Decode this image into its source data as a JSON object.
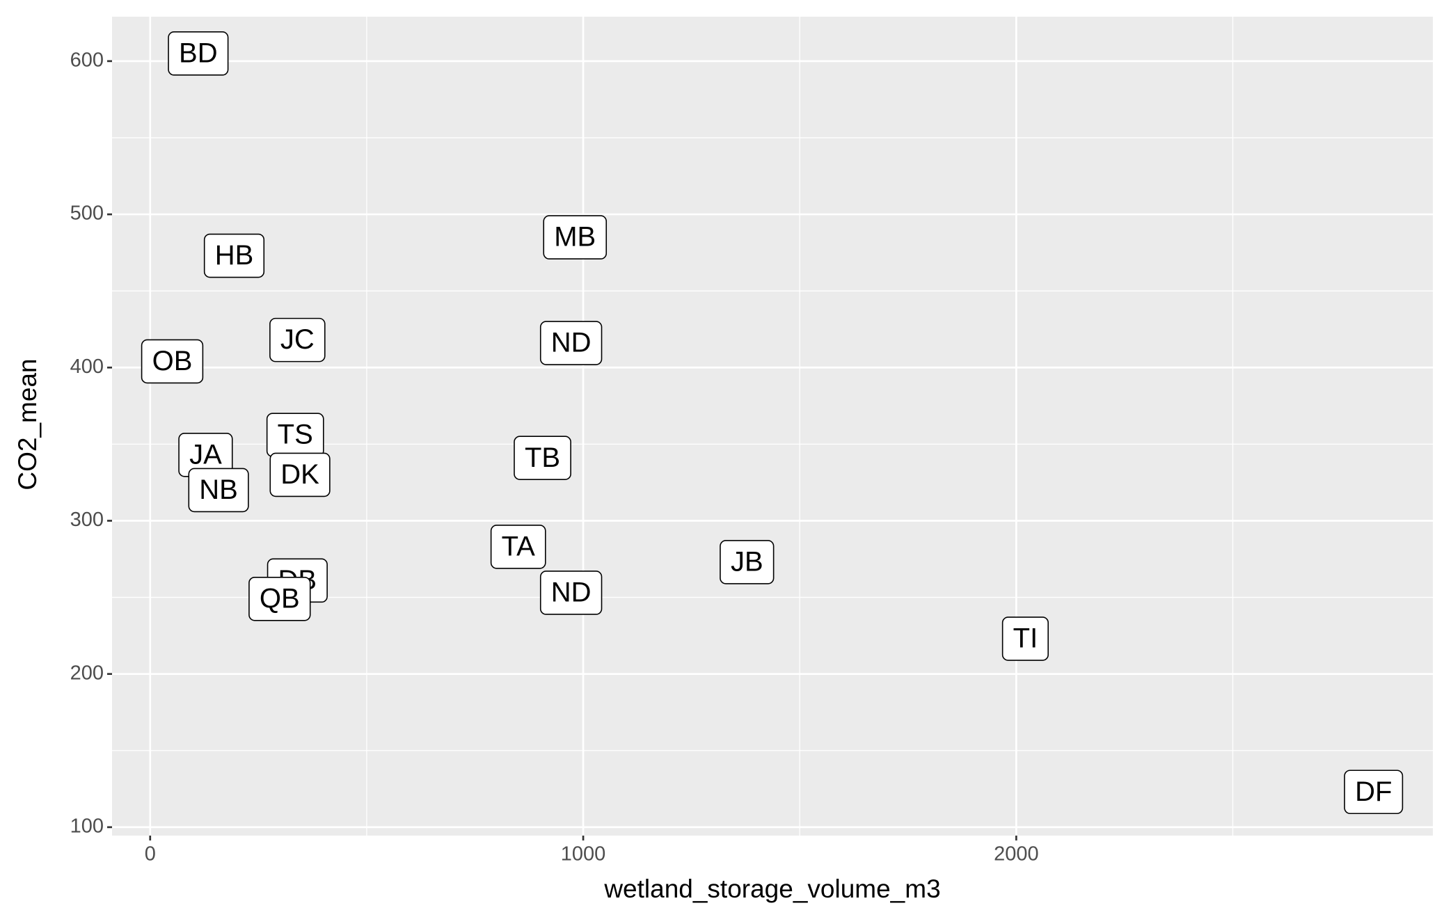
{
  "chart_data": {
    "type": "scatter",
    "x_label": "wetland_storage_volume_m3",
    "y_label": "CO2_mean",
    "labels": [
      "BD",
      "HB",
      "MB",
      "OB",
      "JC",
      "ND",
      "TS",
      "JA",
      "DK",
      "NB",
      "TB",
      "TA",
      "JB",
      "DB",
      "QB",
      "ND",
      "TI",
      "DF"
    ],
    "x": [
      111,
      194,
      981,
      51,
      340,
      972,
      335,
      128,
      346,
      158,
      906,
      850,
      1378,
      340,
      299,
      972,
      2021,
      2825
    ],
    "values": [
      605,
      473,
      485,
      404,
      418,
      416,
      356,
      343,
      330,
      320,
      341,
      283,
      273,
      261,
      249,
      253,
      223,
      123
    ],
    "xlim": [
      -88,
      2962
    ],
    "ylim": [
      94.5,
      629
    ],
    "xticks": [
      0,
      1000,
      2000
    ],
    "yticks": [
      100,
      200,
      300,
      400,
      500,
      600
    ],
    "grid": true,
    "panel_color": "#ebebeb"
  }
}
